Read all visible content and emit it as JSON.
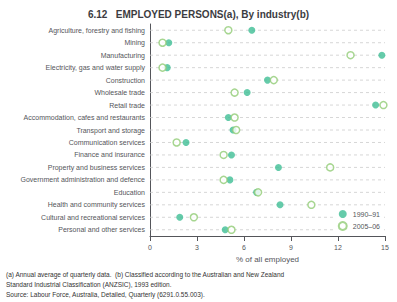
{
  "chart_data": {
    "type": "scatter",
    "orientation": "horizontal",
    "title": "6.12   EMPLOYED PERSONS(a), By industry(b)",
    "categories": [
      "Agriculture, forestry and fishing",
      "Mining",
      "Manufacturing",
      "Electricity, gas and water supply",
      "Construction",
      "Wholesale trade",
      "Retail trade",
      "Accommodation, cafes and restaurants",
      "Transport and storage",
      "Communication services",
      "Finance and insurance",
      "Property and business services",
      "Government administration and defence",
      "Education",
      "Health and community services",
      "Cultural and recreational services",
      "Personal and other services"
    ],
    "series": [
      {
        "name": "1990–91",
        "marker": "circle",
        "values": [
          6.5,
          1.2,
          14.8,
          1.1,
          7.5,
          6.2,
          14.4,
          5.0,
          5.3,
          2.3,
          5.2,
          8.2,
          5.1,
          6.8,
          8.3,
          1.9,
          4.8
        ]
      },
      {
        "name": "2005–06",
        "marker": "open_circle",
        "values": [
          5.0,
          0.8,
          12.8,
          0.8,
          7.9,
          5.4,
          14.9,
          5.4,
          5.5,
          1.7,
          4.7,
          11.5,
          4.7,
          6.9,
          10.3,
          2.8,
          5.2
        ]
      }
    ],
    "xlabel": "% of all employed",
    "xlim": [
      0,
      15
    ],
    "xticks": [
      0,
      3,
      6,
      9,
      12,
      15
    ],
    "grid": true,
    "legend": "lower right",
    "annotations": [
      "(a) Annual average of quarterly data.  (b) Classified according to the Australian and New Zealand",
      "Standard Industrial Classification (ANZSIC), 1993 edition.",
      "Source: Labour Force, Australia, Detailed, Quarterly (6291.0.55.003)."
    ]
  }
}
